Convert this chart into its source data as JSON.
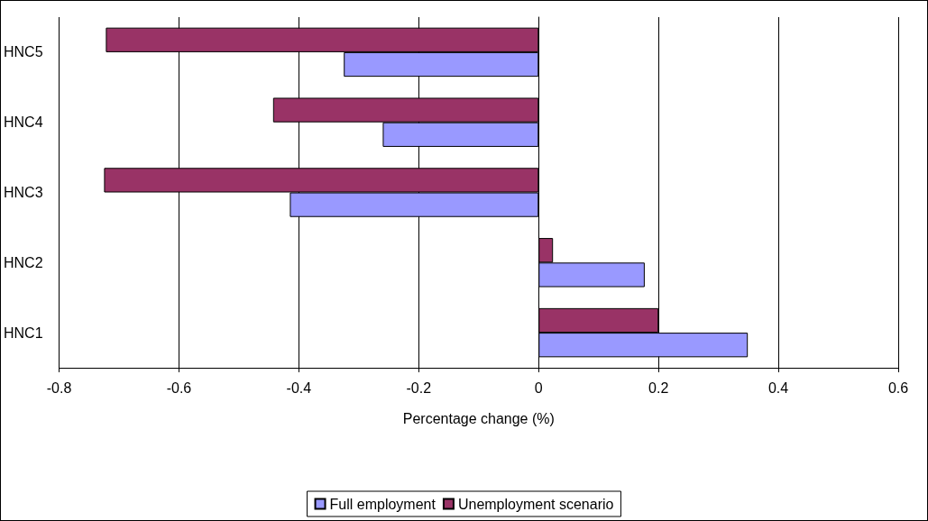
{
  "chart_data": {
    "type": "bar",
    "orientation": "horizontal",
    "xlabel": "Percentage change (%)",
    "categories": [
      "HNC5",
      "HNC4",
      "HNC3",
      "HNC2",
      "HNC1"
    ],
    "series": [
      {
        "name": "Full employment",
        "color": "#9999ff",
        "values": [
          -0.325,
          -0.26,
          -0.415,
          0.177,
          0.349
        ]
      },
      {
        "name": "Unemployment scenario",
        "color": "#993366",
        "values": [
          -0.722,
          -0.443,
          -0.725,
          0.024,
          0.2
        ]
      }
    ],
    "xlim": [
      -0.8,
      0.6
    ],
    "xticks": [
      -0.8,
      -0.6,
      -0.4,
      -0.2,
      0,
      0.2,
      0.4,
      0.6
    ],
    "grid": "x",
    "legend": "bottom"
  }
}
